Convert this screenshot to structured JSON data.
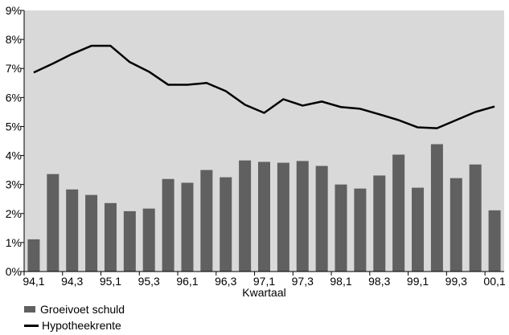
{
  "chart_data": {
    "type": "bar+line",
    "xlabel": "Kwartaal",
    "ylabel": "",
    "ylim": [
      0,
      9
    ],
    "yticks": [
      "0%",
      "1%",
      "2%",
      "3%",
      "4%",
      "5%",
      "6%",
      "7%",
      "8%",
      "9%"
    ],
    "grid": false,
    "legend_position": "bottom-left",
    "categories": [
      "94,1",
      "94,2",
      "94,3",
      "94,4",
      "95,1",
      "95,2",
      "95,3",
      "95,4",
      "96,1",
      "96,2",
      "96,3",
      "96,4",
      "97,1",
      "97,2",
      "97,3",
      "97,4",
      "98,1",
      "98,2",
      "98,3",
      "98,4",
      "99,1",
      "99,2",
      "99,3",
      "99,4",
      "00,1"
    ],
    "xtick_labels": [
      "94,1",
      "94,3",
      "95,1",
      "95,3",
      "96,1",
      "96,3",
      "97,1",
      "97,3",
      "98,1",
      "98,3",
      "99,1",
      "99,3",
      "00,1"
    ],
    "series": [
      {
        "name": "Groeivoet schuld",
        "type": "bar",
        "color": "#606060",
        "values": [
          1.11,
          3.36,
          2.83,
          2.64,
          2.36,
          2.08,
          2.17,
          3.19,
          3.06,
          3.5,
          3.25,
          3.83,
          3.78,
          3.75,
          3.81,
          3.64,
          3.0,
          2.86,
          3.31,
          4.03,
          2.89,
          4.39,
          3.22,
          3.69,
          2.11
        ]
      },
      {
        "name": "Hypotheekrente",
        "type": "line",
        "color": "#000000",
        "values": [
          6.86,
          7.17,
          7.5,
          7.78,
          7.78,
          7.22,
          6.89,
          6.44,
          6.44,
          6.5,
          6.22,
          5.75,
          5.47,
          5.94,
          5.72,
          5.86,
          5.67,
          5.61,
          5.42,
          5.22,
          4.97,
          4.94,
          5.22,
          5.5,
          5.69
        ]
      }
    ],
    "plot_background": "#d9d9d9"
  }
}
